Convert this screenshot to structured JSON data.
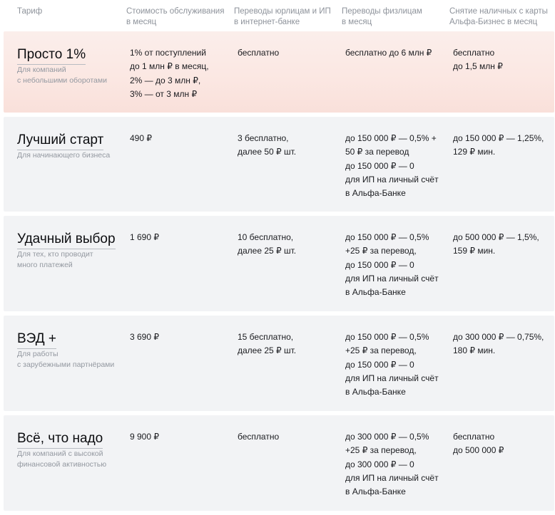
{
  "header": {
    "col0": "Тариф",
    "col1": "Стоимость обслуживания\nв месяц",
    "col2": "Переводы юрлицам и ИП\nв интернет-банке",
    "col3": "Переводы физлицам\nв месяц",
    "col4": "Снятие наличных с карты\nАльфа-Бизнес в месяц"
  },
  "tariffs": [
    {
      "name": "Просто 1%",
      "desc": "Для компаний\nс небольшими оборотами",
      "cost": "1% от поступлений\nдо 1 млн ₽ в месяц,\n2% — до 3 млн ₽,\n3% — от 3 млн ₽",
      "legal": "бесплатно",
      "individuals": "бесплатно до 6 млн ₽",
      "cash": "бесплатно\nдо 1,5 млн ₽"
    },
    {
      "name": "Лучший старт",
      "desc": "Для начинающего бизнеса",
      "cost": "490 ₽",
      "legal": "3 бесплатно,\nдалее 50 ₽ шт.",
      "individuals": "до 150 000 ₽ — 0,5% +\n50 ₽ за перевод\nдо 150 000 ₽ — 0\nдля ИП на личный счёт\nв Альфа-Банке",
      "cash": "до 150 000 ₽ — 1,25%,\n129 ₽ мин."
    },
    {
      "name": "Удачный выбор",
      "desc": "Для тех, кто проводит\nмного платежей",
      "cost": "1 690 ₽",
      "legal": "10 бесплатно,\nдалее 25 ₽ шт.",
      "individuals": "до 150 000 ₽ — 0,5%\n+25 ₽ за перевод,\nдо 150 000 ₽ — 0\nдля ИП на личный счёт\nв Альфа-Банке",
      "cash": "до 500 000 ₽ — 1,5%,\n159 ₽ мин."
    },
    {
      "name": "ВЭД +",
      "desc": "Для работы\nс зарубежными партнёрами",
      "cost": "3 690 ₽",
      "legal": "15 бесплатно,\nдалее 25 ₽ шт.",
      "individuals": "до 150 000 ₽ — 0,5%\n+25 ₽ за перевод,\nдо 150 000 ₽ — 0\nдля ИП на личный счёт\nв Альфа-Банке",
      "cash": "до 300 000 ₽ — 0,75%,\n180 ₽ мин."
    },
    {
      "name": "Всё, что надо",
      "desc": "Для компаний с высокой\nфинансовой активностью",
      "cost": "9 900 ₽",
      "legal": "бесплатно",
      "individuals": "до 300 000 ₽ — 0,5%\n+25 ₽ за перевод,\nдо 300 000 ₽ — 0\nдля ИП на личный счёт\nв Альфа-Банке",
      "cash": "бесплатно\nдо 500 000 ₽"
    }
  ]
}
